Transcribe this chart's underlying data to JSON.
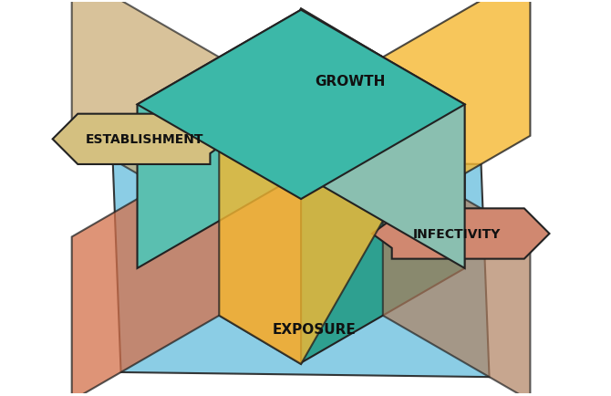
{
  "fig_width": 6.7,
  "fig_height": 4.35,
  "dpi": 100,
  "bg_color": "#ffffff",
  "blue_color": "#7ec8e3",
  "blue_alpha": 0.9,
  "teal_top": "#3cb8a8",
  "teal_left": "#5abfb0",
  "teal_right": "#2ea090",
  "teal_front_left": "#8abfb0",
  "teal_front_right": "#60b0a0",
  "yellow_color": "#f5b832",
  "orange_color": "#d4704a",
  "tan_color": "#c8a870",
  "brown_color": "#b08060",
  "arrow_left_fill": "#d4c080",
  "arrow_left_body": "#c8a870",
  "arrow_right_fill": "#d08870",
  "arrow_right_body": "#b87860",
  "outline": "#222222",
  "lw": 1.5,
  "label_growth": "GROWTH",
  "label_exposure": "EXPOSURE",
  "label_establishment": "ESTABLISHMENT",
  "label_infectivity": "INFECTIVITY",
  "font_size": 11
}
